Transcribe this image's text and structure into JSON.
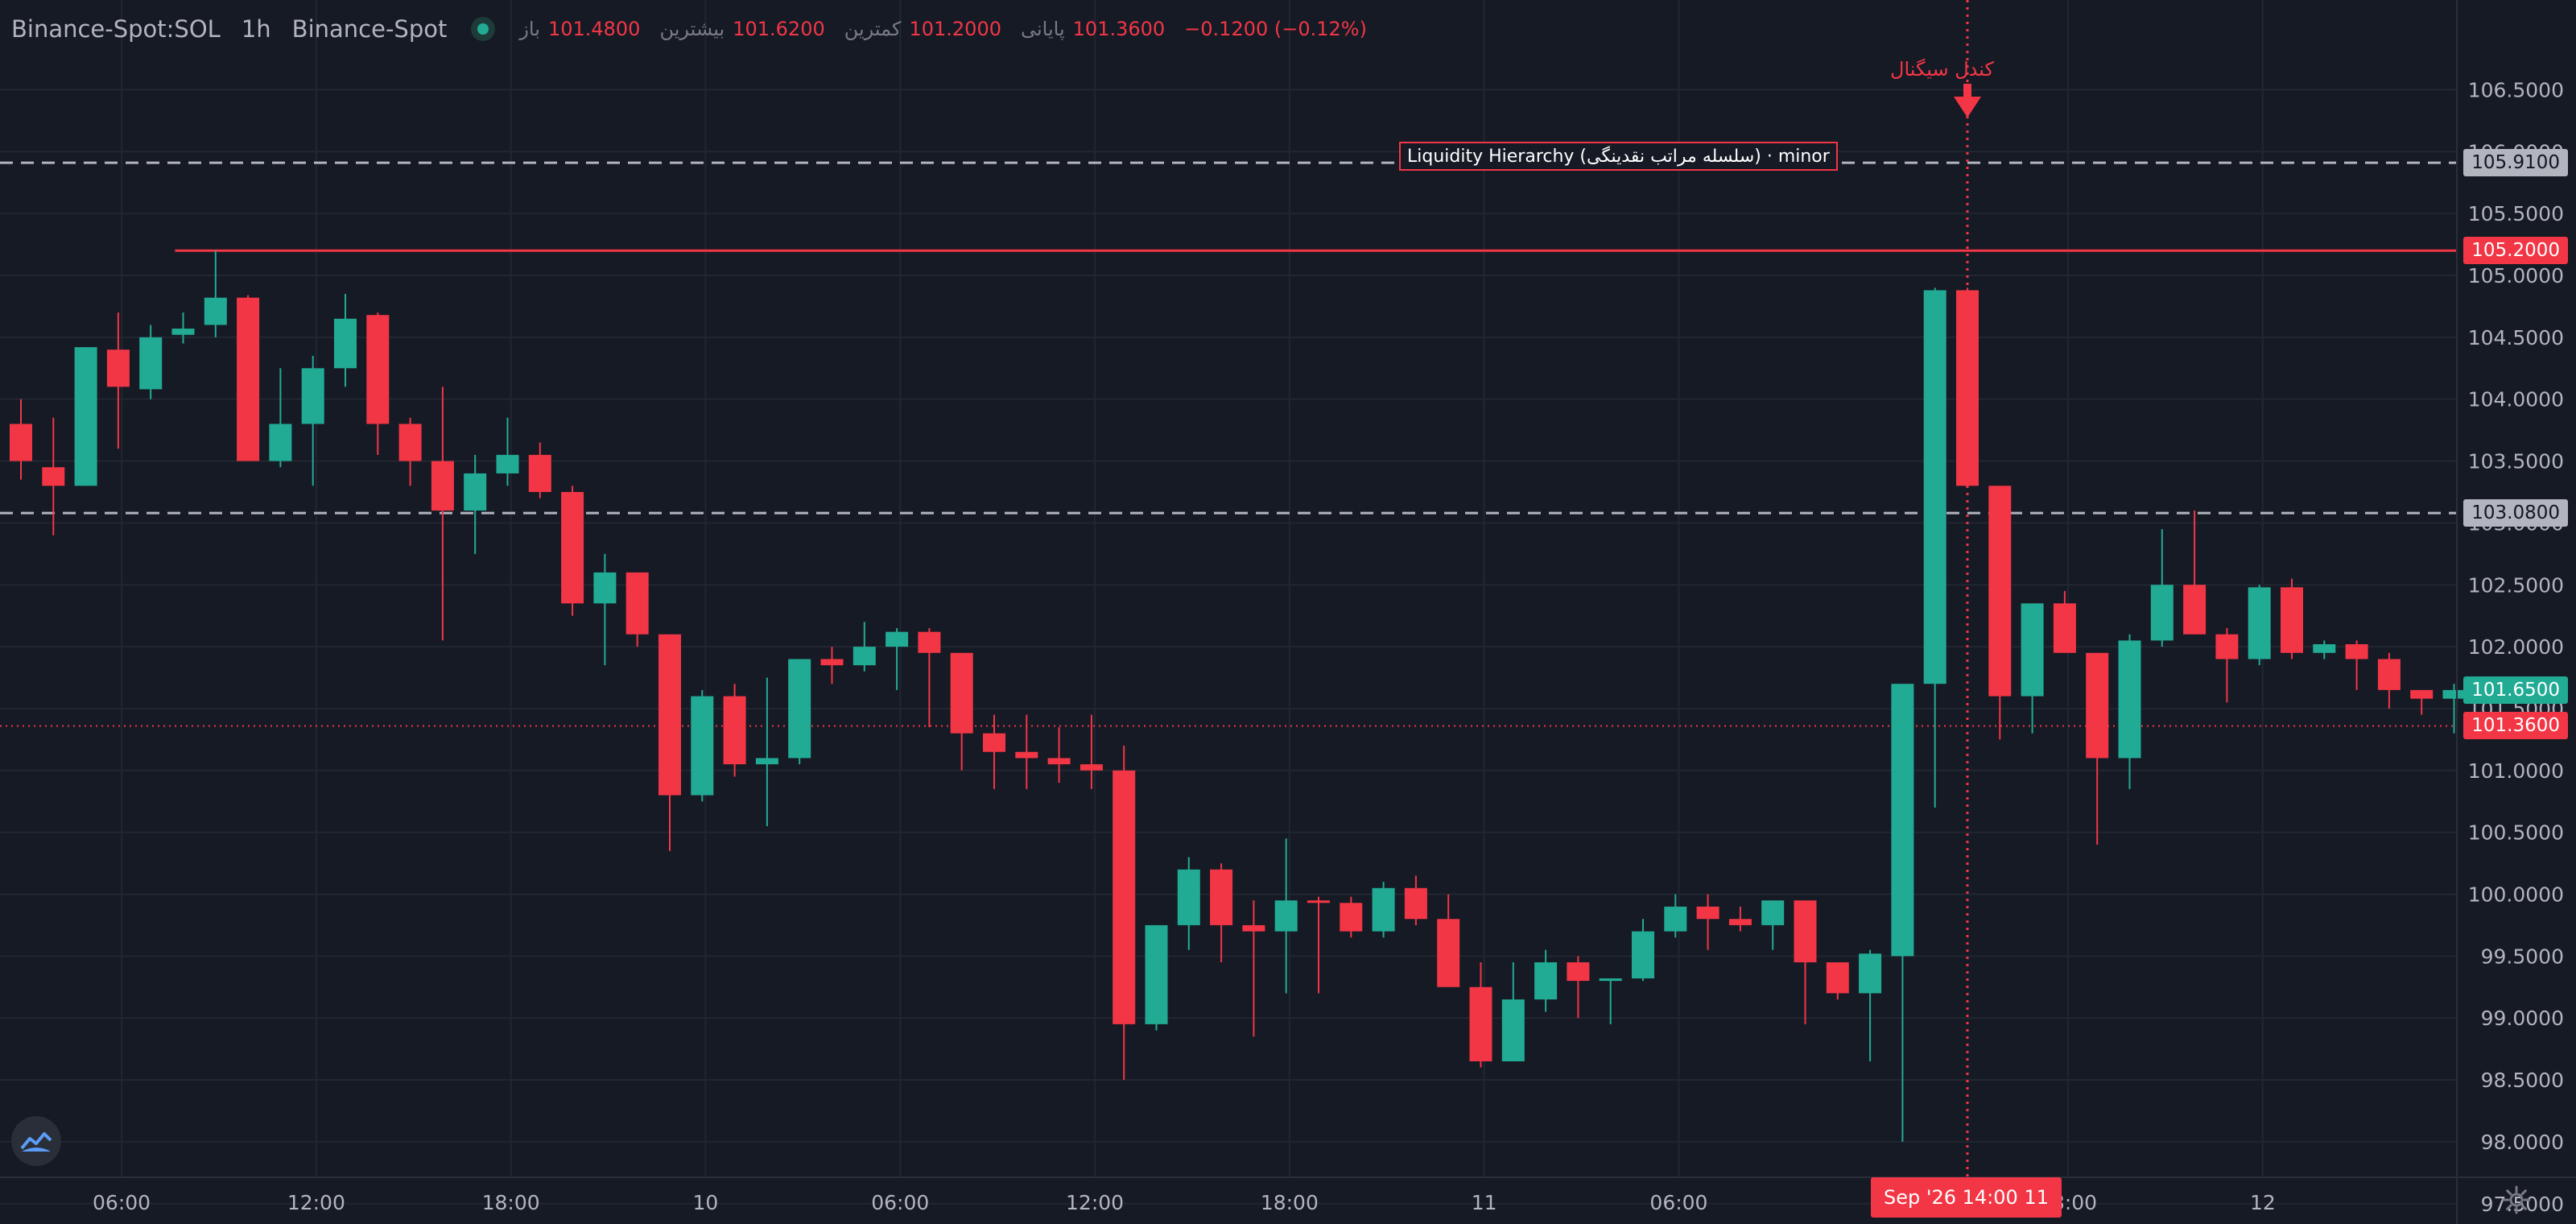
{
  "header": {
    "symbol": "Binance-Spot:SOL",
    "timeframe": "1h",
    "exchange": "Binance-Spot",
    "open_label": "باز",
    "open_value": "101.4800",
    "high_label": "بیشترین",
    "high_value": "101.6200",
    "low_label": "کمترین",
    "low_value": "101.2000",
    "close_label": "پایانی",
    "close_value": "101.3600",
    "change": "−0.1200 (−0.12%)"
  },
  "price_tags": {
    "level_upper": "105.9100",
    "level_liquidity": "105.2000",
    "level_lower": "103.0800",
    "current_green": "101.6500",
    "current_red": "101.3600"
  },
  "annotations": {
    "liquidity_label": "Liquidity Hierarchy (سلسله مراتب نقدینگی) · minor",
    "signal_label": "کندل سیگنال",
    "crosshair_time": "Sep '26   14:00 11"
  },
  "colors": {
    "background": "#161a25",
    "up": "#22ab94",
    "down": "#f23645",
    "grid": "#222631",
    "dashed_level": "#b2b5be",
    "axis_text": "#b2b5be"
  },
  "icons": {
    "logo": "chart-logo-icon",
    "settings": "gear-icon"
  },
  "chart_data": {
    "type": "candlestick",
    "title": "",
    "y_axis_ticks": [
      "106.5000",
      "106.0000",
      "105.5000",
      "105.0000",
      "104.5000",
      "104.0000",
      "103.5000",
      "103.0000",
      "102.5000",
      "102.0000",
      "101.5000",
      "101.0000",
      "100.5000",
      "100.0000",
      "99.5000",
      "99.0000",
      "98.5000",
      "98.0000",
      "97.5000"
    ],
    "ylim": [
      97.2,
      106.7
    ],
    "x_axis_labels": [
      {
        "slot": 3.5,
        "label": "06:00"
      },
      {
        "slot": 9.5,
        "label": "12:00"
      },
      {
        "slot": 15.5,
        "label": "18:00"
      },
      {
        "slot": 21.5,
        "label": "10"
      },
      {
        "slot": 27.5,
        "label": "06:00"
      },
      {
        "slot": 33.5,
        "label": "12:00"
      },
      {
        "slot": 39.5,
        "label": "18:00"
      },
      {
        "slot": 45.5,
        "label": "11"
      },
      {
        "slot": 51.5,
        "label": "06:00"
      },
      {
        "slot": 63.5,
        "label": "18:00"
      },
      {
        "slot": 69.5,
        "label": "12"
      }
    ],
    "candles": [
      [
        103.8,
        104.0,
        103.35,
        103.5
      ],
      [
        103.45,
        103.85,
        102.9,
        103.3
      ],
      [
        103.3,
        104.42,
        103.3,
        104.42
      ],
      [
        104.4,
        104.7,
        103.6,
        104.1
      ],
      [
        104.08,
        104.6,
        104.0,
        104.5
      ],
      [
        104.52,
        104.7,
        104.45,
        104.57
      ],
      [
        104.6,
        105.2,
        104.5,
        104.82
      ],
      [
        104.82,
        104.84,
        103.5,
        103.5
      ],
      [
        103.5,
        104.25,
        103.45,
        103.8
      ],
      [
        103.8,
        104.35,
        103.3,
        104.25
      ],
      [
        104.25,
        104.85,
        104.1,
        104.65
      ],
      [
        104.68,
        104.7,
        103.55,
        103.8
      ],
      [
        103.8,
        103.85,
        103.3,
        103.5
      ],
      [
        103.5,
        104.1,
        102.05,
        103.1
      ],
      [
        103.1,
        103.55,
        102.75,
        103.4
      ],
      [
        103.4,
        103.85,
        103.3,
        103.55
      ],
      [
        103.55,
        103.65,
        103.2,
        103.25
      ],
      [
        103.25,
        103.3,
        102.25,
        102.35
      ],
      [
        102.35,
        102.75,
        101.85,
        102.6
      ],
      [
        102.6,
        102.6,
        102.0,
        102.1
      ],
      [
        102.1,
        102.1,
        100.35,
        100.8
      ],
      [
        100.8,
        101.65,
        100.75,
        101.6
      ],
      [
        101.6,
        101.7,
        100.95,
        101.05
      ],
      [
        101.05,
        101.75,
        100.55,
        101.1
      ],
      [
        101.1,
        101.9,
        101.05,
        101.9
      ],
      [
        101.9,
        102.0,
        101.7,
        101.85
      ],
      [
        101.85,
        102.2,
        101.8,
        102.0
      ],
      [
        102.0,
        102.15,
        101.65,
        102.12
      ],
      [
        102.12,
        102.15,
        101.35,
        101.95
      ],
      [
        101.95,
        101.95,
        101.0,
        101.3
      ],
      [
        101.3,
        101.45,
        100.85,
        101.15
      ],
      [
        101.15,
        101.45,
        100.85,
        101.1
      ],
      [
        101.1,
        101.35,
        100.9,
        101.05
      ],
      [
        101.05,
        101.45,
        100.85,
        101.0
      ],
      [
        101.0,
        101.2,
        98.5,
        98.95
      ],
      [
        98.95,
        99.75,
        98.9,
        99.75
      ],
      [
        99.75,
        100.3,
        99.55,
        100.2
      ],
      [
        100.2,
        100.25,
        99.45,
        99.75
      ],
      [
        99.75,
        99.95,
        98.85,
        99.7
      ],
      [
        99.7,
        100.45,
        99.2,
        99.95
      ],
      [
        99.95,
        99.98,
        99.2,
        99.93
      ],
      [
        99.93,
        99.98,
        99.65,
        99.7
      ],
      [
        99.7,
        100.1,
        99.65,
        100.05
      ],
      [
        100.05,
        100.15,
        99.75,
        99.8
      ],
      [
        99.8,
        100.0,
        99.25,
        99.25
      ],
      [
        99.25,
        99.45,
        98.6,
        98.65
      ],
      [
        98.65,
        99.45,
        98.65,
        99.15
      ],
      [
        99.15,
        99.55,
        99.05,
        99.45
      ],
      [
        99.45,
        99.5,
        99.0,
        99.3
      ],
      [
        99.3,
        99.3,
        98.95,
        99.32
      ],
      [
        99.32,
        99.8,
        99.3,
        99.7
      ],
      [
        99.7,
        100.0,
        99.65,
        99.9
      ],
      [
        99.9,
        100.0,
        99.55,
        99.8
      ],
      [
        99.8,
        99.9,
        99.7,
        99.75
      ],
      [
        99.75,
        99.9,
        99.55,
        99.95
      ],
      [
        99.95,
        99.95,
        98.95,
        99.45
      ],
      [
        99.45,
        99.45,
        99.15,
        99.2
      ],
      [
        99.2,
        99.55,
        98.65,
        99.52
      ],
      [
        99.5,
        101.7,
        98.0,
        101.7
      ],
      [
        101.7,
        104.9,
        100.7,
        104.88
      ],
      [
        104.88,
        104.9,
        103.3,
        103.3
      ],
      [
        103.3,
        103.3,
        101.25,
        101.6
      ],
      [
        101.6,
        102.35,
        101.3,
        102.35
      ],
      [
        102.35,
        102.45,
        101.95,
        101.95
      ],
      [
        101.95,
        101.95,
        100.4,
        101.1
      ],
      [
        101.1,
        102.1,
        100.85,
        102.05
      ],
      [
        102.05,
        102.95,
        102.0,
        102.5
      ],
      [
        102.5,
        103.1,
        102.1,
        102.1
      ],
      [
        102.1,
        102.15,
        101.55,
        101.9
      ],
      [
        101.9,
        102.5,
        101.85,
        102.48
      ],
      [
        102.48,
        102.55,
        101.9,
        101.95
      ],
      [
        101.95,
        102.05,
        101.9,
        102.02
      ],
      [
        102.02,
        102.05,
        101.65,
        101.9
      ],
      [
        101.9,
        101.95,
        101.5,
        101.65
      ],
      [
        101.65,
        101.65,
        101.45,
        101.58
      ],
      [
        101.58,
        101.7,
        101.3,
        101.65
      ]
    ],
    "horizontal_levels": [
      {
        "price": 105.91,
        "style": "dashed"
      },
      {
        "price": 103.08,
        "style": "dashed"
      },
      {
        "price": 105.2,
        "style": "solid",
        "from_slot": 5,
        "label": "Liquidity Hierarchy (سلسله مراتب نقدینگی) · minor"
      },
      {
        "price": 101.36,
        "style": "dotted"
      }
    ],
    "signal_candle_slot": 60,
    "grid": true
  }
}
